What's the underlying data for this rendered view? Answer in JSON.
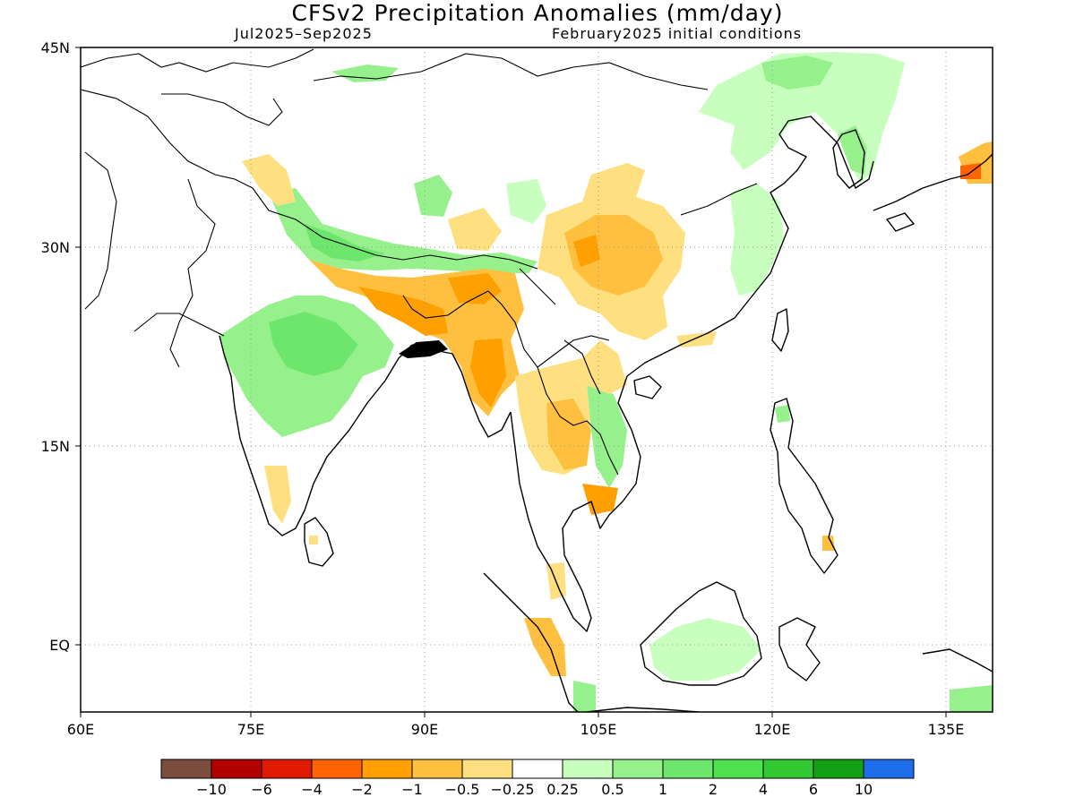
{
  "header": {
    "title": "CFSv2 Precipitation Anomalies (mm/day)",
    "period": "Jul2025–Sep2025",
    "init": "February2025 initial conditions"
  },
  "map": {
    "lon_range": [
      60,
      140
    ],
    "lat_range": [
      -6,
      45
    ],
    "lon_ticks": [
      "60E",
      "75E",
      "90E",
      "105E",
      "120E",
      "135E"
    ],
    "lat_ticks": [
      "45N",
      "30N",
      "15N",
      "EQ"
    ]
  },
  "legend": {
    "labels": [
      "−10",
      "−6",
      "−4",
      "−2",
      "−1",
      "−0.5",
      "−0.25",
      "0.25",
      "0.5",
      "1",
      "2",
      "4",
      "6",
      "10"
    ],
    "colors": [
      "#7a4d3f",
      "#b30000",
      "#e01a00",
      "#ff6400",
      "#ffa000",
      "#ffc040",
      "#ffe080",
      "#ffffff",
      "#c8ffbe",
      "#96f08c",
      "#6ee66e",
      "#4ee34e",
      "#32c832",
      "#14a014",
      "#1e6eeb"
    ]
  }
}
